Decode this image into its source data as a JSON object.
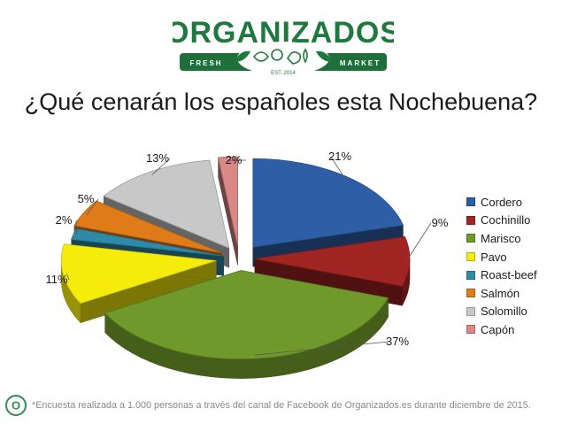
{
  "brand": {
    "name": "ORGANIZADOS",
    "left_tag": "FRESH",
    "right_tag": "MARKET",
    "est": "EST. 2014",
    "footer_initial": "O",
    "colors": {
      "green": "#1e7a3c",
      "banner": "#1f6f3a"
    }
  },
  "footer": {
    "note": "*Encuesta realizada a 1.000 personas a través del canal de Facebook de Organizados.es durante diciembre de 2015."
  },
  "chart_data": {
    "type": "pie",
    "style": "3d-exploded",
    "title": "¿Qué cenarán los españoles esta Nochebuena?",
    "legend_position": "right",
    "value_format": "percent",
    "slices": [
      {
        "label": "Cordero",
        "value": 21,
        "value_label": "21%",
        "color": "#2e5fa6"
      },
      {
        "label": "Cochinillo",
        "value": 9,
        "value_label": "9%",
        "color": "#a02422"
      },
      {
        "label": "Marisco",
        "value": 37,
        "value_label": "37%",
        "color": "#6f9a2b"
      },
      {
        "label": "Pavo",
        "value": 11,
        "value_label": "11%",
        "color": "#f6ec0c"
      },
      {
        "label": "Roast-beef",
        "value": 2,
        "value_label": "2%",
        "color": "#2e8aa6"
      },
      {
        "label": "Salmón",
        "value": 5,
        "value_label": "5%",
        "color": "#e07b1a"
      },
      {
        "label": "Solomillo",
        "value": 13,
        "value_label": "13%",
        "color": "#c8c8c8"
      },
      {
        "label": "Capón",
        "value": 2,
        "value_label": "2%",
        "color": "#d98886"
      }
    ]
  }
}
